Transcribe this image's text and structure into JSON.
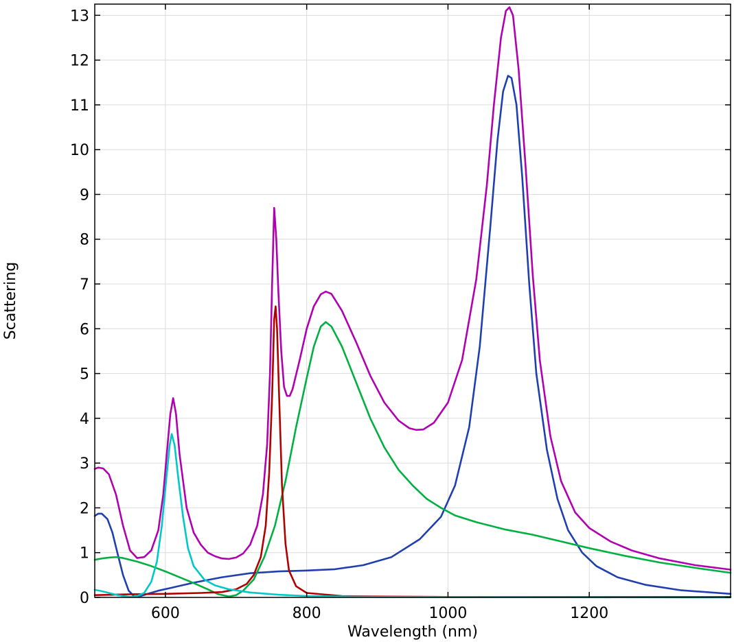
{
  "chart_data": {
    "type": "line",
    "title": "",
    "xlabel": "Wavelength (nm)",
    "ylabel": "Scattering",
    "xlim": [
      500,
      1400
    ],
    "ylim": [
      0,
      13.25
    ],
    "grid": true,
    "legend": "none",
    "x_ticks": [
      600,
      800,
      1000,
      1200
    ],
    "y_ticks": [
      0,
      1,
      2,
      3,
      4,
      5,
      6,
      7,
      8,
      9,
      10,
      11,
      12,
      13
    ],
    "x_tick_labels": [
      "600",
      "800",
      "1000",
      "1200"
    ],
    "y_tick_labels": [
      "0",
      "1",
      "2",
      "3",
      "4",
      "5",
      "6",
      "7",
      "8",
      "9",
      "10",
      "11",
      "12",
      "13"
    ],
    "series": [
      {
        "color": "#b000b0",
        "points": [
          [
            500,
            2.87
          ],
          [
            505,
            2.9
          ],
          [
            512,
            2.88
          ],
          [
            520,
            2.75
          ],
          [
            530,
            2.3
          ],
          [
            540,
            1.6
          ],
          [
            550,
            1.05
          ],
          [
            560,
            0.88
          ],
          [
            570,
            0.9
          ],
          [
            580,
            1.05
          ],
          [
            590,
            1.5
          ],
          [
            597,
            2.3
          ],
          [
            603,
            3.4
          ],
          [
            607,
            4.1
          ],
          [
            611,
            4.45
          ],
          [
            615,
            4.1
          ],
          [
            620,
            3.2
          ],
          [
            630,
            2.0
          ],
          [
            640,
            1.45
          ],
          [
            650,
            1.18
          ],
          [
            660,
            1.0
          ],
          [
            670,
            0.92
          ],
          [
            680,
            0.87
          ],
          [
            690,
            0.86
          ],
          [
            700,
            0.89
          ],
          [
            710,
            0.98
          ],
          [
            720,
            1.18
          ],
          [
            730,
            1.6
          ],
          [
            738,
            2.3
          ],
          [
            744,
            3.4
          ],
          [
            748,
            5.0
          ],
          [
            751,
            7.0
          ],
          [
            754,
            8.7
          ],
          [
            757,
            8.0
          ],
          [
            760,
            6.8
          ],
          [
            764,
            5.5
          ],
          [
            768,
            4.7
          ],
          [
            772,
            4.5
          ],
          [
            776,
            4.5
          ],
          [
            780,
            4.65
          ],
          [
            790,
            5.3
          ],
          [
            800,
            6.0
          ],
          [
            810,
            6.5
          ],
          [
            820,
            6.77
          ],
          [
            827,
            6.83
          ],
          [
            835,
            6.78
          ],
          [
            850,
            6.4
          ],
          [
            870,
            5.7
          ],
          [
            890,
            4.95
          ],
          [
            910,
            4.35
          ],
          [
            930,
            3.95
          ],
          [
            945,
            3.78
          ],
          [
            955,
            3.74
          ],
          [
            965,
            3.75
          ],
          [
            980,
            3.9
          ],
          [
            1000,
            4.35
          ],
          [
            1020,
            5.3
          ],
          [
            1040,
            7.1
          ],
          [
            1055,
            9.2
          ],
          [
            1065,
            11.0
          ],
          [
            1075,
            12.5
          ],
          [
            1082,
            13.1
          ],
          [
            1087,
            13.18
          ],
          [
            1092,
            13.0
          ],
          [
            1100,
            11.8
          ],
          [
            1110,
            9.6
          ],
          [
            1120,
            7.2
          ],
          [
            1130,
            5.3
          ],
          [
            1145,
            3.6
          ],
          [
            1160,
            2.6
          ],
          [
            1180,
            1.9
          ],
          [
            1200,
            1.55
          ],
          [
            1230,
            1.25
          ],
          [
            1260,
            1.05
          ],
          [
            1300,
            0.87
          ],
          [
            1350,
            0.72
          ],
          [
            1400,
            0.62
          ]
        ]
      },
      {
        "color": "#1f3fb0",
        "points": [
          [
            500,
            1.82
          ],
          [
            505,
            1.87
          ],
          [
            510,
            1.87
          ],
          [
            518,
            1.75
          ],
          [
            525,
            1.45
          ],
          [
            532,
            1.0
          ],
          [
            540,
            0.5
          ],
          [
            548,
            0.15
          ],
          [
            556,
            0.02
          ],
          [
            565,
            0.03
          ],
          [
            575,
            0.08
          ],
          [
            590,
            0.15
          ],
          [
            610,
            0.22
          ],
          [
            640,
            0.33
          ],
          [
            680,
            0.45
          ],
          [
            720,
            0.54
          ],
          [
            760,
            0.58
          ],
          [
            800,
            0.6
          ],
          [
            840,
            0.63
          ],
          [
            880,
            0.72
          ],
          [
            920,
            0.9
          ],
          [
            960,
            1.3
          ],
          [
            990,
            1.8
          ],
          [
            1010,
            2.5
          ],
          [
            1030,
            3.8
          ],
          [
            1045,
            5.6
          ],
          [
            1060,
            8.3
          ],
          [
            1070,
            10.2
          ],
          [
            1078,
            11.3
          ],
          [
            1085,
            11.65
          ],
          [
            1090,
            11.6
          ],
          [
            1097,
            11.0
          ],
          [
            1105,
            9.4
          ],
          [
            1115,
            7.0
          ],
          [
            1125,
            5.0
          ],
          [
            1140,
            3.3
          ],
          [
            1155,
            2.2
          ],
          [
            1170,
            1.5
          ],
          [
            1190,
            1.0
          ],
          [
            1210,
            0.7
          ],
          [
            1240,
            0.45
          ],
          [
            1280,
            0.28
          ],
          [
            1330,
            0.16
          ],
          [
            1400,
            0.08
          ]
        ]
      },
      {
        "color": "#00b040",
        "points": [
          [
            500,
            0.84
          ],
          [
            510,
            0.87
          ],
          [
            520,
            0.89
          ],
          [
            530,
            0.9
          ],
          [
            540,
            0.88
          ],
          [
            560,
            0.8
          ],
          [
            580,
            0.7
          ],
          [
            600,
            0.58
          ],
          [
            620,
            0.45
          ],
          [
            640,
            0.32
          ],
          [
            660,
            0.18
          ],
          [
            675,
            0.07
          ],
          [
            690,
            0.02
          ],
          [
            700,
            0.05
          ],
          [
            710,
            0.15
          ],
          [
            725,
            0.4
          ],
          [
            740,
            0.9
          ],
          [
            755,
            1.6
          ],
          [
            770,
            2.6
          ],
          [
            785,
            3.8
          ],
          [
            800,
            4.9
          ],
          [
            810,
            5.6
          ],
          [
            820,
            6.05
          ],
          [
            827,
            6.15
          ],
          [
            835,
            6.05
          ],
          [
            850,
            5.6
          ],
          [
            870,
            4.8
          ],
          [
            890,
            4.0
          ],
          [
            910,
            3.35
          ],
          [
            930,
            2.85
          ],
          [
            950,
            2.5
          ],
          [
            970,
            2.2
          ],
          [
            990,
            2.0
          ],
          [
            1010,
            1.83
          ],
          [
            1040,
            1.68
          ],
          [
            1080,
            1.52
          ],
          [
            1120,
            1.4
          ],
          [
            1160,
            1.25
          ],
          [
            1200,
            1.1
          ],
          [
            1250,
            0.93
          ],
          [
            1300,
            0.78
          ],
          [
            1350,
            0.66
          ],
          [
            1400,
            0.55
          ]
        ]
      },
      {
        "color": "#b00000",
        "points": [
          [
            500,
            0.05
          ],
          [
            550,
            0.07
          ],
          [
            600,
            0.08
          ],
          [
            650,
            0.1
          ],
          [
            680,
            0.12
          ],
          [
            700,
            0.18
          ],
          [
            715,
            0.3
          ],
          [
            725,
            0.5
          ],
          [
            735,
            0.9
          ],
          [
            742,
            1.6
          ],
          [
            747,
            2.8
          ],
          [
            751,
            4.5
          ],
          [
            754,
            6.2
          ],
          [
            756,
            6.5
          ],
          [
            758,
            6.0
          ],
          [
            761,
            4.5
          ],
          [
            765,
            2.5
          ],
          [
            770,
            1.2
          ],
          [
            775,
            0.6
          ],
          [
            785,
            0.25
          ],
          [
            800,
            0.1
          ],
          [
            850,
            0.03
          ],
          [
            900,
            0.02
          ],
          [
            1000,
            0.01
          ],
          [
            1400,
            0.01
          ]
        ]
      },
      {
        "color": "#00c8c8",
        "points": [
          [
            500,
            0.17
          ],
          [
            510,
            0.14
          ],
          [
            520,
            0.1
          ],
          [
            530,
            0.06
          ],
          [
            540,
            0.03
          ],
          [
            550,
            0.01
          ],
          [
            560,
            0.03
          ],
          [
            570,
            0.1
          ],
          [
            580,
            0.35
          ],
          [
            588,
            0.8
          ],
          [
            595,
            1.6
          ],
          [
            601,
            2.6
          ],
          [
            606,
            3.4
          ],
          [
            609,
            3.65
          ],
          [
            613,
            3.4
          ],
          [
            618,
            2.7
          ],
          [
            625,
            1.8
          ],
          [
            632,
            1.1
          ],
          [
            640,
            0.7
          ],
          [
            655,
            0.4
          ],
          [
            670,
            0.27
          ],
          [
            690,
            0.18
          ],
          [
            720,
            0.11
          ],
          [
            760,
            0.06
          ],
          [
            800,
            0.03
          ],
          [
            900,
            0.01
          ],
          [
            1400,
            0.0
          ]
        ]
      }
    ]
  }
}
